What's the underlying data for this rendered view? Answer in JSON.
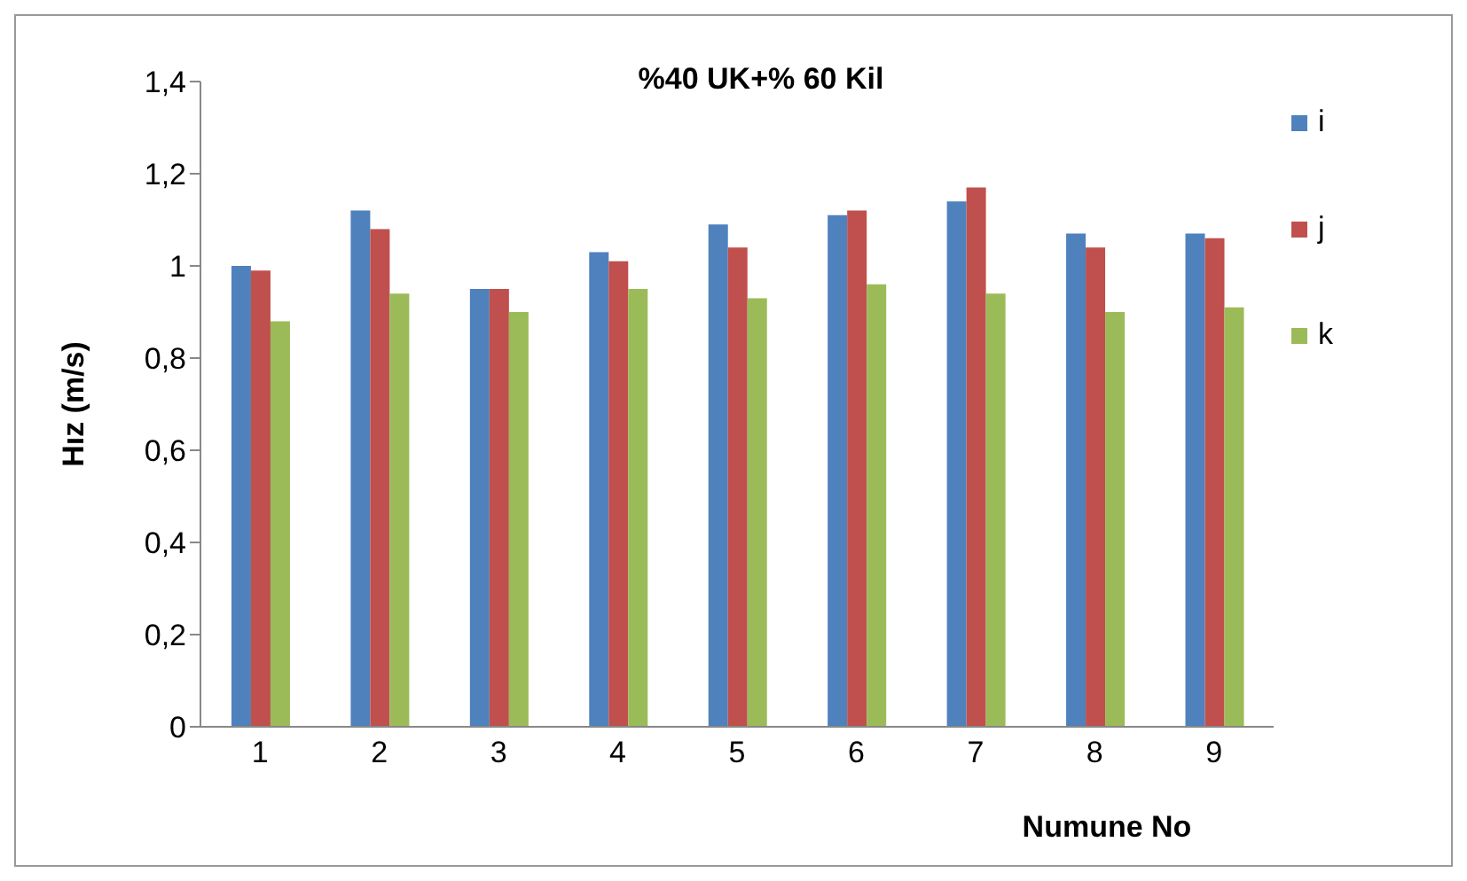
{
  "chart_data": {
    "type": "bar",
    "title": "%40 UK+% 60 Kil",
    "xlabel": "Numune No",
    "ylabel": "Hız (m/s)",
    "categories": [
      "1",
      "2",
      "3",
      "4",
      "5",
      "6",
      "7",
      "8",
      "9"
    ],
    "series": [
      {
        "name": "i",
        "color": "#4f81bd",
        "values": [
          1.0,
          1.12,
          0.95,
          1.03,
          1.09,
          1.11,
          1.14,
          1.07,
          1.07
        ]
      },
      {
        "name": "j",
        "color": "#c0504d",
        "values": [
          0.99,
          1.08,
          0.95,
          1.01,
          1.04,
          1.12,
          1.17,
          1.04,
          1.06
        ]
      },
      {
        "name": "k",
        "color": "#9bbb59",
        "values": [
          0.88,
          0.94,
          0.9,
          0.95,
          0.93,
          0.96,
          0.94,
          0.9,
          0.91
        ]
      }
    ],
    "ylim": [
      0,
      1.4
    ],
    "yticks": [
      0,
      {
        "value": 0.2,
        "label": "0,2"
      },
      {
        "value": 0.4,
        "label": "0,4"
      },
      {
        "value": 0.6,
        "label": "0,6"
      },
      {
        "value": 0.8,
        "label": "0,8"
      },
      1,
      {
        "value": 1.2,
        "label": "1,2"
      },
      {
        "value": 1.4,
        "label": "1,4"
      }
    ],
    "grid": false,
    "legend": "right"
  }
}
